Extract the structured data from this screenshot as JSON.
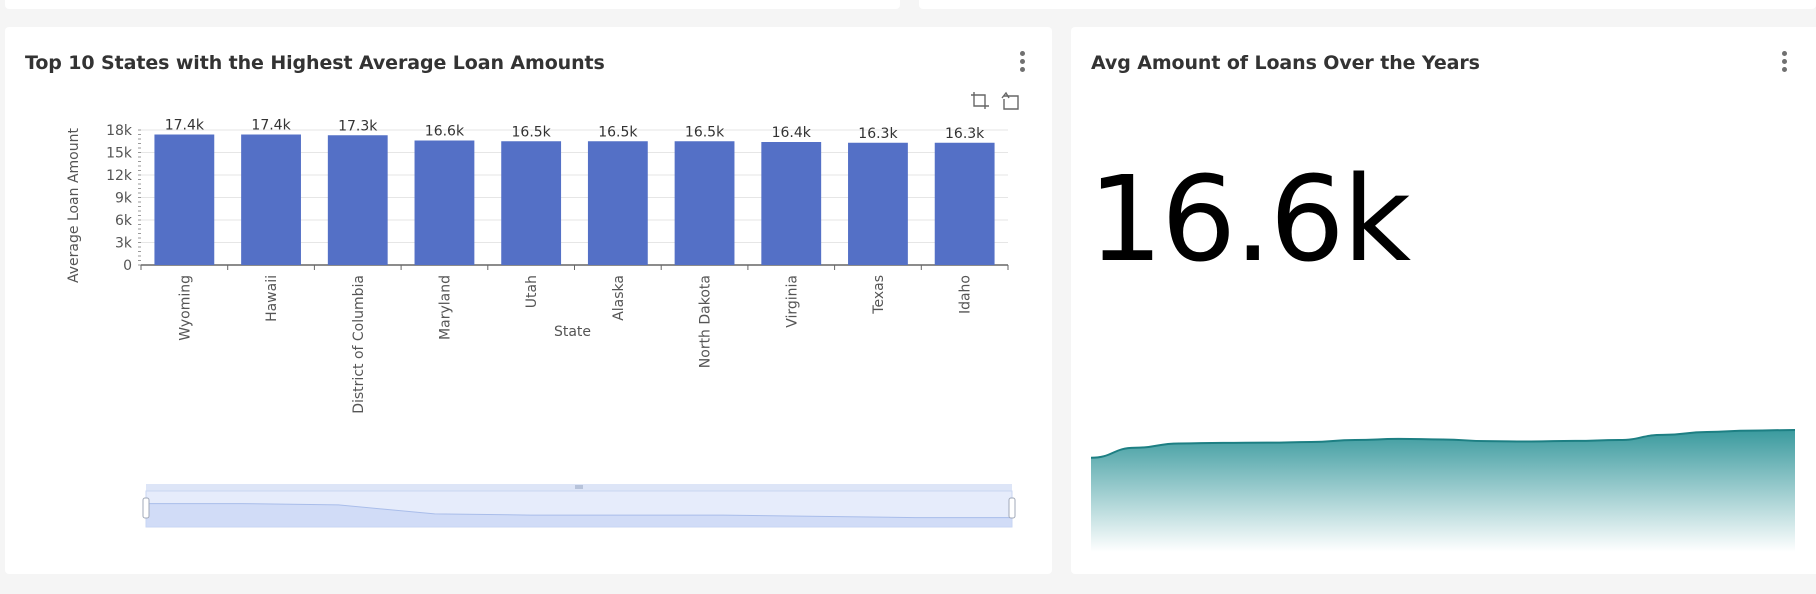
{
  "bar_card": {
    "title": "Top 10 States with the Highest Average Loan Amounts"
  },
  "big_card": {
    "title": "Avg Amount of Loans Over the Years",
    "big_number": "16.6k"
  },
  "colors": {
    "bar": "#5470c6",
    "area": "#3a9a9e",
    "area_line": "#1d7f83",
    "zoom_fill": "#e6ecfb",
    "zoom_border": "#c9d6f2"
  },
  "icons": {
    "card_menu": "more-vertical-icon",
    "zoom": "data-zoom-icon",
    "zoom_reset": "zoom-reset-icon"
  },
  "chart_data": [
    {
      "type": "bar",
      "title": "Top 10 States with the Highest Average Loan Amounts",
      "xlabel": "State",
      "ylabel": "Average Loan Amount",
      "categories": [
        "Wyoming",
        "Hawaii",
        "District of Columbia",
        "Maryland",
        "Utah",
        "Alaska",
        "North Dakota",
        "Virginia",
        "Texas",
        "Idaho"
      ],
      "values": [
        17400,
        17400,
        17300,
        16600,
        16500,
        16500,
        16500,
        16400,
        16300,
        16300
      ],
      "value_labels": [
        "17.4k",
        "17.4k",
        "17.3k",
        "16.6k",
        "16.5k",
        "16.5k",
        "16.5k",
        "16.4k",
        "16.3k",
        "16.3k"
      ],
      "ylim": [
        0,
        18000
      ],
      "yticks": [
        0,
        3000,
        6000,
        9000,
        12000,
        15000,
        18000
      ],
      "ytick_labels": [
        "0",
        "3k",
        "6k",
        "9k",
        "12k",
        "15k",
        "18k"
      ],
      "grid": true,
      "data_zoom": true
    },
    {
      "type": "area",
      "title": "Avg Amount of Loans Over the Years",
      "big_number": "16.6k",
      "values": [
        15900,
        16250,
        16400,
        16420,
        16430,
        16450,
        16520,
        16560,
        16540,
        16480,
        16470,
        16490,
        16520,
        16700,
        16800,
        16850,
        16870
      ],
      "ylim": [
        0,
        17000
      ],
      "axes_visible": false
    }
  ]
}
